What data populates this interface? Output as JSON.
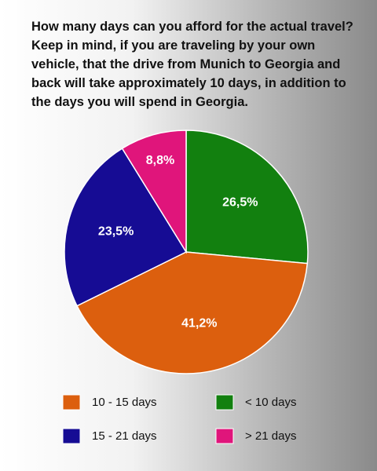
{
  "chart_data": {
    "type": "pie",
    "title": "How many days can you afford for the actual travel? Keep in mind, if you are traveling by your own vehicle, that the drive from Munich to Georgia and back will take approximately 10 days, in addition to the days you will spend in Georgia.",
    "categories": [
      "< 10 days",
      "10 - 15 days",
      "15 - 21 days",
      "> 21 days"
    ],
    "values": [
      26.5,
      41.2,
      23.5,
      8.8
    ],
    "value_labels": [
      "26,5%",
      "41,2%",
      "23,5%",
      "8,8%"
    ],
    "colors": [
      "#12800f",
      "#dc5f0e",
      "#160c94",
      "#e0157b"
    ]
  }
}
